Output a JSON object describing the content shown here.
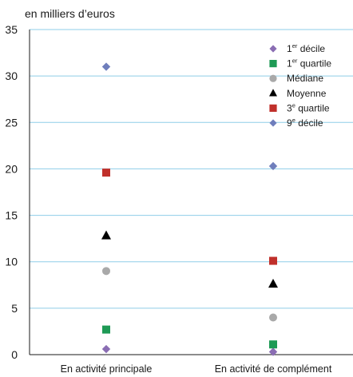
{
  "chart_data": {
    "type": "scatter",
    "unit_label": "en milliers d’euros",
    "ylim": [
      0,
      35
    ],
    "yticks": [
      0,
      5,
      10,
      15,
      20,
      25,
      30,
      35
    ],
    "categories": [
      "En activité principale",
      "En activité de complément"
    ],
    "grid": true,
    "legend_position": "top-right",
    "series": [
      {
        "name": "1er décile",
        "legend_parts": [
          "1",
          "er",
          " décile"
        ],
        "marker": "diamond",
        "color": "#8a6db3",
        "values": [
          0.6,
          0.3
        ]
      },
      {
        "name": "1er quartile",
        "legend_parts": [
          "1",
          "er",
          " quartile"
        ],
        "marker": "square",
        "color": "#1e9a55",
        "values": [
          2.7,
          1.1
        ]
      },
      {
        "name": "Médiane",
        "legend_parts": [
          "Médiane",
          "",
          ""
        ],
        "marker": "circle",
        "color": "#a9a9a9",
        "values": [
          9.0,
          4.0
        ]
      },
      {
        "name": "Moyenne",
        "legend_parts": [
          "Moyenne",
          "",
          ""
        ],
        "marker": "triangle",
        "color": "#000000",
        "values": [
          12.8,
          7.6
        ]
      },
      {
        "name": "3e quartile",
        "legend_parts": [
          "3",
          "e",
          " quartile"
        ],
        "marker": "square",
        "color": "#c0302b",
        "values": [
          19.6,
          10.1
        ]
      },
      {
        "name": "9e décile",
        "legend_parts": [
          "9",
          "e",
          " décile"
        ],
        "marker": "diamond",
        "color": "#6f7ebc",
        "values": [
          31.0,
          20.3
        ]
      }
    ]
  }
}
